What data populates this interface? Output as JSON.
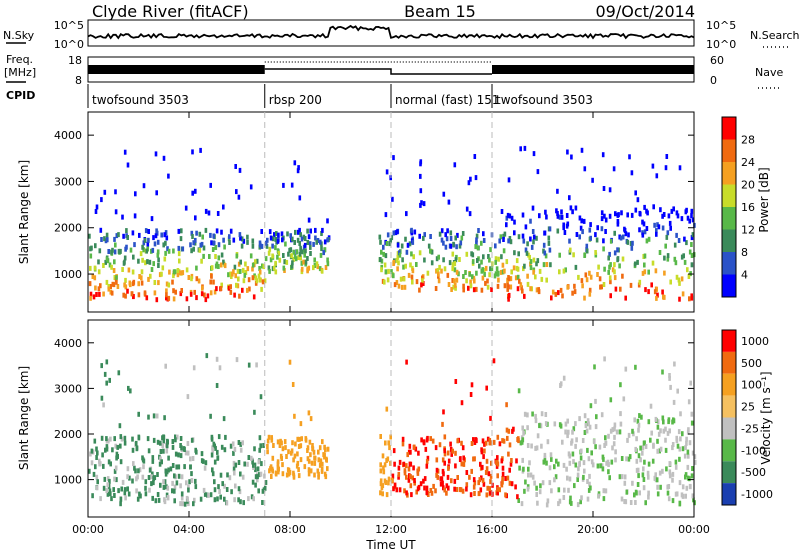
{
  "header": {
    "station": "Clyde River (fitACF)",
    "beam": "Beam 15",
    "date": "09/Oct/2014"
  },
  "panel_labels": {
    "nsky": "N.Sky",
    "nsearch": "N.Search",
    "freq_line1": "Freq.",
    "freq_line2": "[MHz]",
    "nave": "Nave",
    "cpid": "CPID"
  },
  "noise_axis": {
    "left_ticks": [
      "10^5",
      "10^0"
    ],
    "right_ticks": [
      "10^5",
      "10^0"
    ]
  },
  "freq_axis": {
    "left_ticks": [
      "18",
      "8"
    ],
    "right_ticks": [
      "60",
      "0"
    ]
  },
  "cpid_segments": [
    {
      "label": "twofsound 3503",
      "start_h": 0.0,
      "end_h": 7.0
    },
    {
      "label": "rbsp 200",
      "start_h": 7.0,
      "end_h": 12.0
    },
    {
      "label": "normal (fast) 151",
      "start_h": 12.0,
      "end_h": 16.0
    },
    {
      "label": "twofsound 3503",
      "start_h": 16.0,
      "end_h": 24.0
    }
  ],
  "colors": {
    "power": [
      "#0000ff",
      "#2a52c8",
      "#3a8a5a",
      "#58b848",
      "#c8dc2a",
      "#f5a021",
      "#f06a10",
      "#ff0000"
    ],
    "velocity": [
      "#1a3fb0",
      "#3a8a5a",
      "#58b848",
      "#c0c0c0",
      "#f5c060",
      "#f5a021",
      "#f06a10",
      "#ff0000"
    ]
  },
  "chart_data": [
    {
      "type": "heatmap",
      "name_key": "power",
      "xlabel": "",
      "ylabel": "Slant Range [km]",
      "xlim": [
        0,
        24
      ],
      "ylim": [
        180,
        4500
      ],
      "yticks": [
        "1000",
        "2000",
        "3000",
        "4000"
      ],
      "xticks": [
        "00:00",
        "04:00",
        "08:00",
        "12:00",
        "16:00",
        "20:00",
        "00:00"
      ],
      "colorbar_label": "Power [dB]",
      "colorbar_ticks": [
        "28",
        "24",
        "20",
        "16",
        "12",
        "8",
        "4"
      ],
      "mode_change_hours": [
        7,
        12,
        16
      ]
    },
    {
      "type": "heatmap",
      "name_key": "velocity",
      "xlabel": "Time UT",
      "ylabel": "Slant Range [km]",
      "xlim": [
        0,
        24
      ],
      "ylim": [
        180,
        4500
      ],
      "yticks": [
        "1000",
        "2000",
        "3000",
        "4000"
      ],
      "xticks": [
        "00:00",
        "04:00",
        "08:00",
        "12:00",
        "16:00",
        "20:00",
        "00:00"
      ],
      "colorbar_label": "Velocity [m s⁻¹]",
      "colorbar_ticks": [
        "1000",
        "500",
        "100",
        "25",
        "-25",
        "-100",
        "-500",
        "-1000"
      ],
      "mode_change_hours": [
        7,
        12,
        16
      ]
    }
  ]
}
